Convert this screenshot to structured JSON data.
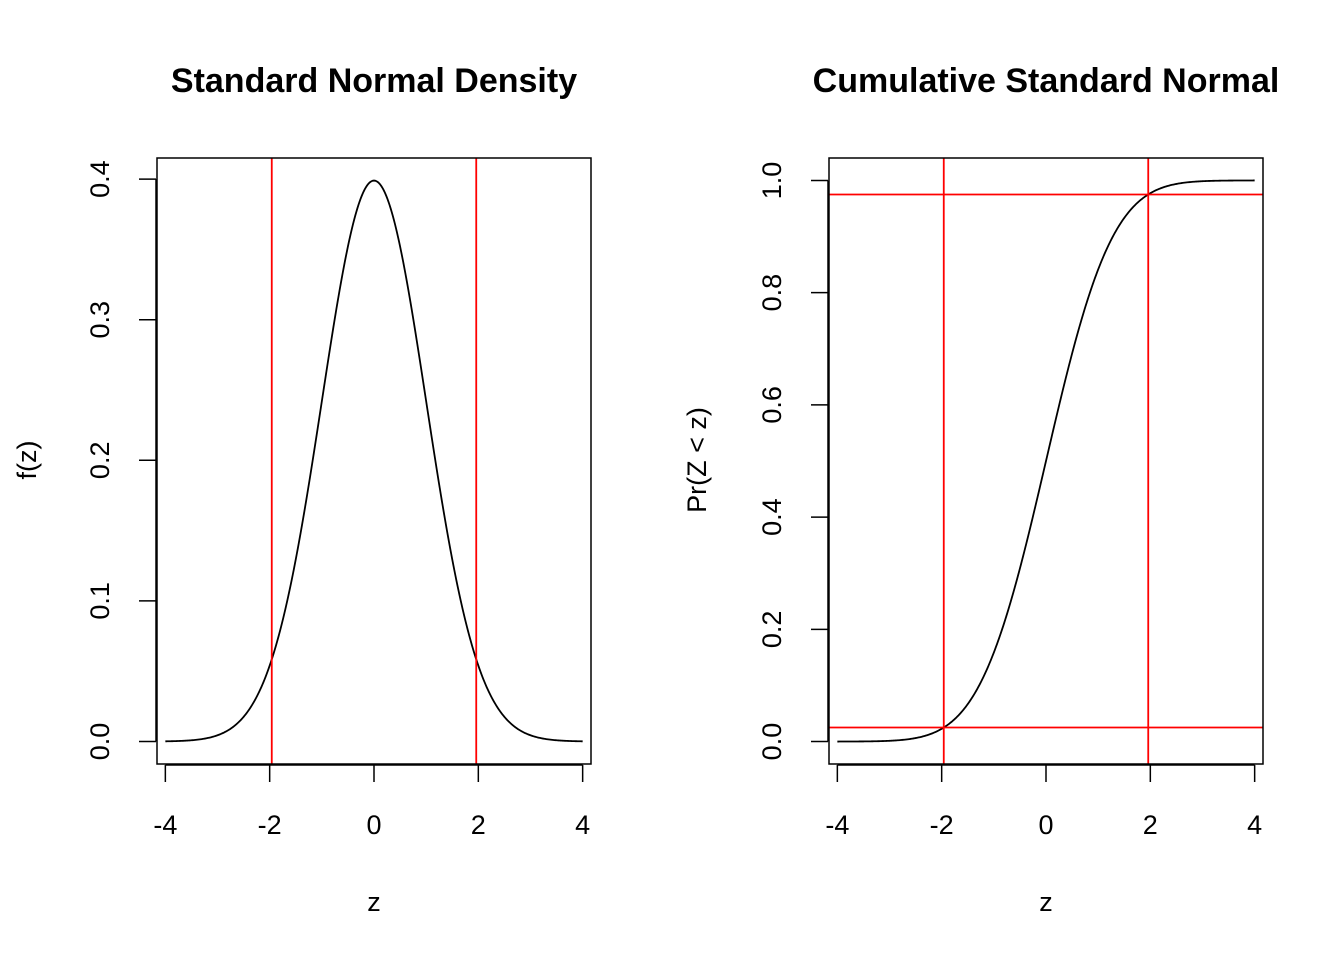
{
  "colors": {
    "curve": "#000000",
    "reference_lines": "#ff0000",
    "background": "#ffffff"
  },
  "chart_data": [
    {
      "type": "line",
      "title": "Standard Normal Density",
      "xlabel": "z",
      "ylabel": "f(z)",
      "xlim": [
        -4.16,
        4.16
      ],
      "ylim": [
        -0.016,
        0.415
      ],
      "xticks": [
        -4,
        -2,
        0,
        2,
        4
      ],
      "xtick_labels": [
        "-4",
        "-2",
        "0",
        "2",
        "4"
      ],
      "yticks": [
        0,
        0.1,
        0.2,
        0.3,
        0.4
      ],
      "ytick_labels": [
        "0.0",
        "0.1",
        "0.2",
        "0.3",
        "0.4"
      ],
      "series": [
        {
          "x": [
            -4,
            -3.5,
            -3,
            -2.5,
            -2,
            -1.5,
            -1,
            -0.5,
            0,
            0.5,
            1,
            1.5,
            2,
            2.5,
            3,
            3.5,
            4
          ],
          "y": [
            0.0001,
            0.0009,
            0.0044,
            0.0175,
            0.054,
            0.1295,
            0.242,
            0.3521,
            0.3989,
            0.3521,
            0.242,
            0.1295,
            0.054,
            0.0175,
            0.0044,
            0.0009,
            0.0001
          ]
        }
      ],
      "vlines": [
        -1.96,
        1.96
      ],
      "hlines": [],
      "grid": false
    },
    {
      "type": "line",
      "title": "Cumulative Standard Normal",
      "xlabel": "z",
      "ylabel": "Pr(Z < z)",
      "xlim": [
        -4.16,
        4.16
      ],
      "ylim": [
        -0.04,
        1.04
      ],
      "xticks": [
        -4,
        -2,
        0,
        2,
        4
      ],
      "xtick_labels": [
        "-4",
        "-2",
        "0",
        "2",
        "4"
      ],
      "yticks": [
        0,
        0.2,
        0.4,
        0.6,
        0.8,
        1.0
      ],
      "ytick_labels": [
        "0.0",
        "0.2",
        "0.4",
        "0.6",
        "0.8",
        "1.0"
      ],
      "series": [
        {
          "x": [
            -4,
            -3.5,
            -3,
            -2.5,
            -2,
            -1.5,
            -1,
            -0.5,
            0,
            0.5,
            1,
            1.5,
            2,
            2.5,
            3,
            3.5,
            4
          ],
          "y": [
            0.0,
            0.0002,
            0.0013,
            0.0062,
            0.0228,
            0.0668,
            0.1587,
            0.3085,
            0.5,
            0.6915,
            0.8413,
            0.9332,
            0.9772,
            0.9938,
            0.9987,
            0.9998,
            1.0
          ]
        }
      ],
      "vlines": [
        -1.96,
        1.96
      ],
      "hlines": [
        0.025,
        0.975
      ],
      "grid": false
    }
  ]
}
